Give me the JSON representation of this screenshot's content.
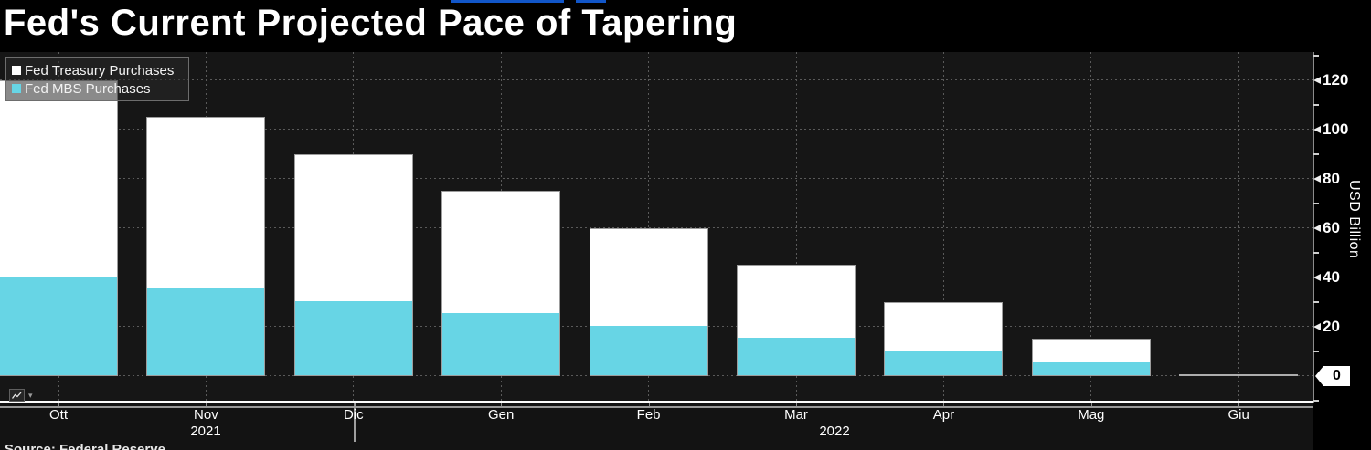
{
  "title": "Fed's Current Projected Pace of Tapering",
  "legend": {
    "items": [
      {
        "label": "Fed Treasury Purchases",
        "color": "#ffffff"
      },
      {
        "label": "Fed MBS Purchases",
        "color": "#67d5e5"
      }
    ]
  },
  "chart_data": {
    "type": "bar",
    "stacked": true,
    "title": "Fed's Current Projected Pace of Tapering",
    "categories": [
      "Ott",
      "Nov",
      "Dic",
      "Gen",
      "Feb",
      "Mar",
      "Apr",
      "Mag",
      "Giu"
    ],
    "x_year_labels": [
      "2021",
      "2022"
    ],
    "series": [
      {
        "name": "Fed MBS Purchases",
        "color": "#67d5e5",
        "values": [
          40,
          35,
          30,
          25,
          20,
          15,
          10,
          5,
          0
        ]
      },
      {
        "name": "Fed Treasury Purchases",
        "color": "#ffffff",
        "values": [
          80,
          70,
          60,
          50,
          40,
          30,
          20,
          10,
          0
        ]
      }
    ],
    "totals": [
      120,
      105,
      90,
      75,
      60,
      45,
      30,
      15,
      0
    ],
    "ylabel": "USD Billion",
    "ylim": [
      0,
      130
    ],
    "yticks_major": [
      0,
      20,
      40,
      60,
      80,
      100,
      120
    ],
    "yticks_minor": [
      -10,
      10,
      30,
      50,
      70,
      90,
      110,
      130
    ],
    "grid": "dotted",
    "legend_position": "top-left",
    "last_value_marker": {
      "value": 0,
      "label": "0"
    }
  },
  "footer": {
    "source": "Source: Federal Reserve"
  },
  "toolbar": {
    "chart_type_icon": "line-chart-icon",
    "dropdown_icon": "chevron-down"
  },
  "colors": {
    "background": "#000000",
    "plot_background": "#161616",
    "accent_blue": "#1156c9",
    "grid": "#5a5a5a",
    "axis_grey": "#999999",
    "bar_border": "#9c9c9c"
  }
}
